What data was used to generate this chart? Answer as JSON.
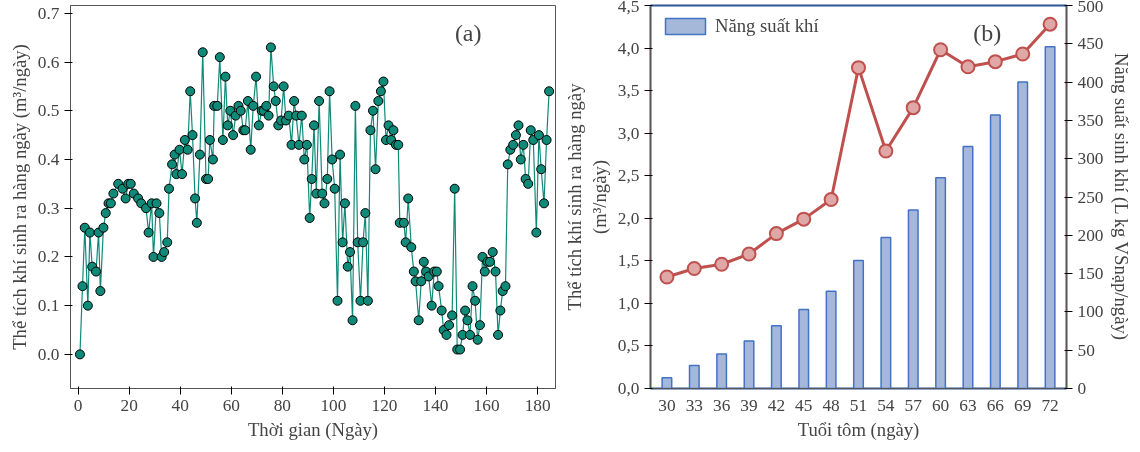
{
  "chart_data": [
    {
      "type": "line",
      "xlabel": "Thời gian (Ngày)",
      "ylabel": "Thể tích khí sinh ra hàng ngày (m³/ngày)",
      "annotations": [
        "(a)"
      ],
      "xlim": [
        -3,
        187
      ],
      "ylim": [
        -0.07,
        0.716
      ],
      "xticks": [
        0,
        20,
        40,
        60,
        80,
        100,
        120,
        140,
        160,
        180
      ],
      "yticks": [
        {
          "value": 0,
          "label": "0.0"
        },
        0.1,
        0.2,
        0.3,
        0.4,
        0.5,
        0.6,
        0.7
      ],
      "grid": false,
      "marker": "circle",
      "line_style": "solid",
      "series": [
        {
          "color": "#0f8a78",
          "x": [
            0.7,
            1.7,
            2.6,
            3.8,
            4.6,
            5.5,
            7.0,
            8.0,
            8.7,
            9.9,
            10.8,
            11.9,
            12.8,
            13.8,
            15.7,
            17.4,
            18.6,
            19.6,
            20.6,
            21.8,
            23.5,
            24.7,
            26.6,
            27.6,
            28.8,
            29.5,
            30.7,
            31.8,
            32.7,
            33.7,
            34.9,
            35.6,
            36.8,
            37.8,
            38.5,
            39.7,
            40.7,
            41.8,
            42.9,
            43.9,
            44.8,
            45.8,
            46.5,
            47.7,
            48.8,
            50.1,
            50.9,
            51.6,
            52.8,
            53.3,
            54.5,
            55.5,
            56.7,
            57.7,
            58.6,
            59.6,
            60.7,
            61.7,
            62.8,
            63.7,
            64.7,
            65.4,
            66.5,
            67.6,
            68.6,
            69.7,
            70.8,
            71.9,
            72.7,
            73.7,
            74.6,
            75.5,
            76.6,
            77.4,
            78.4,
            79.5,
            80.5,
            81.4,
            82.5,
            83.6,
            84.6,
            85.4,
            86.5,
            87.6,
            88.6,
            89.6,
            90.7,
            91.5,
            92.4,
            93.3,
            94.4,
            95.6,
            96.5,
            97.6,
            98.5,
            99.5,
            100.5,
            101.6,
            102.6,
            103.6,
            104.5,
            105.6,
            106.5,
            107.5,
            108.6,
            109.5,
            110.6,
            111.6,
            112.5,
            113.5,
            114.5,
            115.5,
            116.5,
            117.6,
            118.6,
            119.6,
            120.6,
            121.6,
            122.6,
            123.5,
            124.5,
            125.4,
            126.0,
            127.6,
            128.3,
            129.3,
            130.5,
            131.5,
            132.2,
            133.4,
            134.4,
            135.4,
            136.3,
            137.3,
            138.5,
            139.5,
            140.5,
            141.2,
            142.4,
            143.2,
            144.3,
            145.3,
            146.5,
            147.5,
            148.5,
            149.6,
            150.6,
            151.6,
            152.5,
            153.5,
            154.5,
            155.5,
            156.5,
            157.4,
            158.4,
            159.3,
            160.3,
            161.3,
            162.4,
            163.5,
            164.5,
            165.4,
            166.3,
            167.4,
            168.3,
            169.3,
            170.4,
            171.5,
            172.5,
            173.4,
            174.4,
            175.3,
            176.3,
            177.3,
            178.3,
            179.5,
            180.5,
            181.4,
            182.5,
            183.5,
            184.5
          ],
          "values": [
            0.0,
            0.14,
            0.26,
            0.1,
            0.25,
            0.18,
            0.17,
            0.25,
            0.13,
            0.26,
            0.29,
            0.31,
            0.31,
            0.33,
            0.35,
            0.34,
            0.32,
            0.35,
            0.35,
            0.33,
            0.32,
            0.31,
            0.3,
            0.25,
            0.31,
            0.2,
            0.31,
            0.29,
            0.2,
            0.21,
            0.23,
            0.34,
            0.39,
            0.41,
            0.37,
            0.42,
            0.37,
            0.44,
            0.42,
            0.54,
            0.45,
            0.32,
            0.27,
            0.41,
            0.62,
            0.36,
            0.36,
            0.44,
            0.4,
            0.51,
            0.51,
            0.61,
            0.44,
            0.57,
            0.47,
            0.5,
            0.45,
            0.49,
            0.51,
            0.5,
            0.46,
            0.46,
            0.52,
            0.42,
            0.51,
            0.57,
            0.47,
            0.5,
            0.5,
            0.51,
            0.49,
            0.63,
            0.55,
            0.52,
            0.47,
            0.48,
            0.55,
            0.48,
            0.49,
            0.43,
            0.52,
            0.49,
            0.43,
            0.49,
            0.4,
            0.43,
            0.28,
            0.36,
            0.47,
            0.33,
            0.52,
            0.33,
            0.31,
            0.36,
            0.54,
            0.4,
            0.34,
            0.11,
            0.41,
            0.23,
            0.31,
            0.18,
            0.21,
            0.07,
            0.51,
            0.23,
            0.11,
            0.23,
            0.29,
            0.11,
            0.46,
            0.5,
            0.38,
            0.52,
            0.54,
            0.56,
            0.44,
            0.47,
            0.44,
            0.46,
            0.43,
            0.43,
            0.27,
            0.27,
            0.23,
            0.32,
            0.22,
            0.17,
            0.15,
            0.07,
            0.15,
            0.19,
            0.17,
            0.16,
            0.1,
            0.17,
            0.17,
            0.14,
            0.09,
            0.05,
            0.04,
            0.06,
            0.08,
            0.34,
            0.01,
            0.01,
            0.04,
            0.09,
            0.07,
            0.04,
            0.14,
            0.11,
            0.03,
            0.06,
            0.2,
            0.17,
            0.19,
            0.19,
            0.21,
            0.17,
            0.04,
            0.09,
            0.13,
            0.14,
            0.39,
            0.42,
            0.43,
            0.45,
            0.47,
            0.4,
            0.43,
            0.36,
            0.35,
            0.46,
            0.44,
            0.25,
            0.45,
            0.38,
            0.31,
            0.44,
            0.54
          ]
        }
      ]
    },
    {
      "type": "bar",
      "xlabel": "Tuổi tôm (ngày)",
      "ylabel": "Thể tích khí sinh ra hàng ngày\n(m³/ngày)",
      "y2label": "Năng suất sinh khí (L kg VSnạp/ngày)",
      "annotations": [
        "(b)"
      ],
      "categories": [
        "30",
        "33",
        "36",
        "39",
        "42",
        "45",
        "48",
        "51",
        "54",
        "57",
        "60",
        "63",
        "66",
        "69",
        "72"
      ],
      "ylim": [
        0,
        4.5
      ],
      "yticks": [
        {
          "value": 0,
          "label": "0,0"
        },
        {
          "value": 0.5,
          "label": "0,5"
        },
        {
          "value": 1,
          "label": "1,0"
        },
        {
          "value": 1.5,
          "label": "1,5"
        },
        {
          "value": 2,
          "label": "2,0"
        },
        {
          "value": 2.5,
          "label": "2,5"
        },
        {
          "value": 3,
          "label": "3,0"
        },
        {
          "value": 3.5,
          "label": "3,5"
        },
        {
          "value": 4,
          "label": "4,0"
        },
        {
          "value": 4.5,
          "label": "4,5"
        }
      ],
      "y2lim": [
        0,
        500
      ],
      "y2ticks": [
        0,
        50,
        100,
        150,
        200,
        250,
        300,
        350,
        400,
        450,
        500
      ],
      "grid": false,
      "legend": "top left",
      "series": [
        {
          "name": "Năng suất khí",
          "type": "bar",
          "axis": "y2",
          "color": "#a5b8d9",
          "values": [
            14,
            30,
            45,
            62,
            82,
            103,
            127,
            167,
            197,
            233,
            275,
            316,
            357,
            400,
            446
          ]
        },
        {
          "type": "line",
          "axis": "y",
          "color": "#c0504d",
          "marker": "circle",
          "values": [
            1.31,
            1.41,
            1.46,
            1.58,
            1.82,
            1.99,
            2.22,
            3.77,
            2.79,
            3.3,
            3.98,
            3.78,
            3.84,
            3.93,
            4.28
          ]
        }
      ]
    }
  ]
}
